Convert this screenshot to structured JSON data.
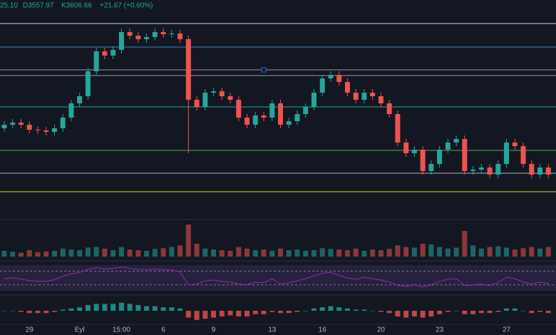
{
  "chart_data": {
    "type": "candlestick",
    "header": [
      "25.10",
      "D3557.97",
      "K3606.66",
      "+21.67 (+0.60%)"
    ],
    "categories": [
      null,
      null,
      null,
      "29",
      null,
      null,
      null,
      null,
      null,
      "Eyl",
      null,
      null,
      null,
      null,
      "15:00",
      null,
      null,
      null,
      null,
      "6",
      null,
      null,
      null,
      null,
      null,
      "9",
      null,
      null,
      null,
      null,
      null,
      null,
      "13",
      null,
      null,
      null,
      null,
      null,
      "16",
      null,
      null,
      null,
      null,
      null,
      null,
      "20",
      null,
      null,
      null,
      null,
      null,
      null,
      "23",
      null,
      null,
      null,
      null,
      null,
      null,
      null,
      "27",
      null,
      null,
      null,
      null,
      null
    ],
    "open": [
      3570,
      3575,
      3578,
      3575,
      3568,
      3567,
      3565,
      3570,
      3585,
      3605,
      3615,
      3650,
      3678,
      3672,
      3680,
      3705,
      3700,
      3695,
      3698,
      3705,
      3702,
      3703,
      3695,
      3610,
      3600,
      3620,
      3622,
      3615,
      3610,
      3585,
      3575,
      3588,
      3585,
      3605,
      3575,
      3580,
      3590,
      3600,
      3620,
      3640,
      3645,
      3635,
      3620,
      3610,
      3620,
      3615,
      3605,
      3590,
      3550,
      3535,
      3540,
      3510,
      3520,
      3540,
      3550,
      3555,
      3510,
      3512,
      3515,
      3505,
      3520,
      3550,
      3545,
      3520,
      3505,
      3515
    ],
    "high": [
      3580,
      3583,
      3583,
      3580,
      3573,
      3572,
      3575,
      3590,
      3610,
      3620,
      3655,
      3683,
      3683,
      3685,
      3710,
      3710,
      3705,
      3703,
      3710,
      3710,
      3708,
      3708,
      3700,
      3615,
      3625,
      3627,
      3627,
      3620,
      3615,
      3590,
      3593,
      3593,
      3610,
      3610,
      3585,
      3595,
      3605,
      3625,
      3645,
      3650,
      3650,
      3640,
      3625,
      3625,
      3625,
      3620,
      3610,
      3595,
      3555,
      3545,
      3545,
      3525,
      3545,
      3555,
      3560,
      3560,
      3517,
      3520,
      3520,
      3525,
      3555,
      3555,
      3550,
      3525,
      3520,
      3520
    ],
    "low": [
      3565,
      3570,
      3570,
      3563,
      3562,
      3560,
      3560,
      3565,
      3580,
      3600,
      3610,
      3645,
      3667,
      3667,
      3675,
      3695,
      3690,
      3690,
      3693,
      3697,
      3697,
      3690,
      3535,
      3595,
      3595,
      3615,
      3610,
      3605,
      3580,
      3570,
      3570,
      3580,
      3580,
      3570,
      3570,
      3575,
      3585,
      3595,
      3615,
      3635,
      3630,
      3615,
      3605,
      3605,
      3610,
      3600,
      3585,
      3545,
      3530,
      3530,
      3505,
      3505,
      3515,
      3535,
      3545,
      3505,
      3505,
      3507,
      3500,
      3500,
      3515,
      3540,
      3515,
      3500,
      3500,
      3500
    ],
    "close": [
      3575,
      3578,
      3575,
      3568,
      3567,
      3565,
      3570,
      3585,
      3605,
      3615,
      3650,
      3678,
      3672,
      3680,
      3705,
      3700,
      3695,
      3698,
      3705,
      3702,
      3703,
      3695,
      3610,
      3600,
      3620,
      3622,
      3615,
      3610,
      3585,
      3575,
      3588,
      3585,
      3605,
      3575,
      3580,
      3590,
      3600,
      3620,
      3640,
      3645,
      3635,
      3620,
      3610,
      3620,
      3615,
      3605,
      3590,
      3550,
      3535,
      3540,
      3510,
      3520,
      3540,
      3550,
      3555,
      3510,
      3512,
      3515,
      3505,
      3520,
      3550,
      3545,
      3520,
      3505,
      3515,
      3505
    ],
    "volume": [
      18,
      15,
      12,
      20,
      14,
      16,
      18,
      25,
      22,
      20,
      28,
      30,
      25,
      20,
      30,
      22,
      20,
      18,
      24,
      26,
      30,
      35,
      100,
      40,
      25,
      22,
      20,
      18,
      30,
      25,
      20,
      22,
      18,
      25,
      20,
      22,
      18,
      20,
      26,
      24,
      22,
      20,
      25,
      18,
      22,
      20,
      24,
      35,
      30,
      28,
      40,
      38,
      30,
      25,
      28,
      80,
      35,
      25,
      30,
      32,
      28,
      22,
      26,
      30,
      25,
      30
    ],
    "rsi": [
      48,
      50,
      47,
      42,
      41,
      40,
      45,
      55,
      62,
      66,
      75,
      80,
      76,
      78,
      82,
      78,
      75,
      74,
      76,
      74,
      73,
      68,
      30,
      32,
      42,
      44,
      40,
      38,
      32,
      30,
      38,
      36,
      48,
      32,
      36,
      42,
      48,
      56,
      64,
      66,
      58,
      50,
      46,
      52,
      48,
      44,
      38,
      28,
      26,
      30,
      24,
      30,
      40,
      46,
      48,
      28,
      30,
      32,
      28,
      36,
      52,
      48,
      38,
      32,
      38,
      34
    ],
    "rsi_bands": [
      30,
      70
    ],
    "macd_hist": [
      0,
      0,
      -1,
      -2,
      -2,
      -2,
      -1,
      1,
      2,
      3,
      5,
      6,
      6,
      6,
      7,
      6,
      5,
      4,
      4,
      3,
      3,
      2,
      -6,
      -8,
      -7,
      -6,
      -5,
      -4,
      -5,
      -5,
      -3,
      -3,
      -1,
      -2,
      -2,
      -1,
      0,
      2,
      3,
      4,
      3,
      2,
      1,
      1,
      0,
      -1,
      -2,
      -5,
      -6,
      -5,
      -6,
      -5,
      -3,
      -1,
      0,
      -3,
      -3,
      -2,
      -2,
      -1,
      2,
      2,
      0,
      -2,
      -1,
      -2
    ],
    "ylim": [
      3450,
      3750
    ],
    "volume_lim": [
      0,
      100
    ],
    "rsi_lim": [
      0,
      100
    ],
    "macd_lim": [
      -10,
      10
    ],
    "up_color": "#26a69a",
    "down_color": "#ef5350",
    "rsi_color": "#9c27b0"
  }
}
